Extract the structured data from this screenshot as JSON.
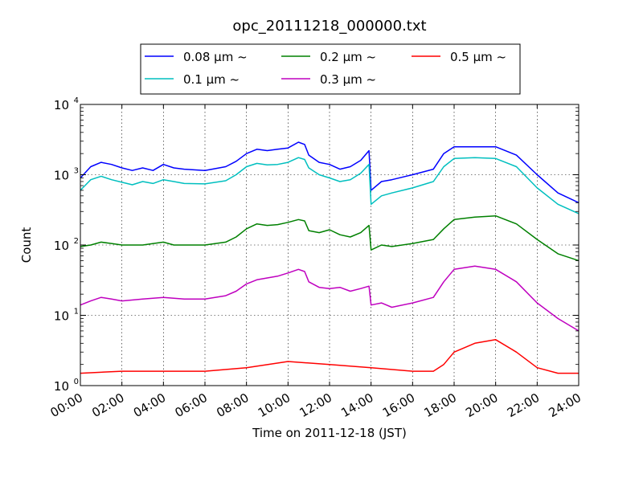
{
  "chart_data": {
    "type": "line",
    "title": "opc_20111218_000000.txt",
    "xlabel": "Time on 2011-12-18 (JST)",
    "ylabel": "Count",
    "x_range_hours": [
      0,
      24
    ],
    "x_ticks": [
      "00:00",
      "02:00",
      "04:00",
      "06:00",
      "08:00",
      "10:00",
      "12:00",
      "14:00",
      "16:00",
      "18:00",
      "20:00",
      "22:00",
      "24:00"
    ],
    "y_scale": "log",
    "ylim": [
      1,
      10000
    ],
    "y_ticks": [
      {
        "base": "10",
        "exp": "0"
      },
      {
        "base": "10",
        "exp": "1"
      },
      {
        "base": "10",
        "exp": "2"
      },
      {
        "base": "10",
        "exp": "3"
      },
      {
        "base": "10",
        "exp": "4"
      }
    ],
    "grid": true,
    "legend_position": "top-center",
    "series": [
      {
        "name": "0.08 μm ~",
        "color": "#0000ff",
        "x": [
          0,
          0.5,
          1,
          1.5,
          2,
          2.5,
          3,
          3.5,
          4,
          4.5,
          5,
          6,
          7,
          7.5,
          8,
          8.5,
          9,
          9.5,
          10,
          10.5,
          10.8,
          11,
          11.5,
          12,
          12.5,
          13,
          13.5,
          13.9,
          14,
          14.5,
          15,
          16,
          17,
          17.5,
          18,
          19,
          20,
          21,
          22,
          23,
          24
        ],
        "y": [
          900,
          1300,
          1500,
          1400,
          1250,
          1150,
          1250,
          1150,
          1400,
          1250,
          1200,
          1150,
          1300,
          1550,
          2000,
          2300,
          2200,
          2300,
          2400,
          2900,
          2700,
          1900,
          1500,
          1400,
          1200,
          1300,
          1600,
          2200,
          600,
          800,
          850,
          1000,
          1200,
          2000,
          2500,
          2500,
          2500,
          1900,
          1000,
          550,
          400
        ]
      },
      {
        "name": "0.1 μm ~",
        "color": "#00bfbf",
        "x": [
          0,
          0.5,
          1,
          1.5,
          2,
          2.5,
          3,
          3.5,
          4,
          4.5,
          5,
          6,
          7,
          7.5,
          8,
          8.5,
          9,
          9.5,
          10,
          10.5,
          10.8,
          11,
          11.5,
          12,
          12.5,
          13,
          13.5,
          13.9,
          14,
          14.5,
          15,
          16,
          17,
          17.5,
          18,
          19,
          20,
          21,
          22,
          23,
          24
        ],
        "y": [
          600,
          850,
          950,
          850,
          780,
          720,
          800,
          750,
          850,
          800,
          750,
          740,
          820,
          1000,
          1300,
          1450,
          1380,
          1400,
          1500,
          1750,
          1650,
          1250,
          1000,
          900,
          800,
          850,
          1050,
          1400,
          380,
          500,
          550,
          650,
          800,
          1300,
          1700,
          1750,
          1700,
          1300,
          650,
          380,
          280
        ]
      },
      {
        "name": "0.2 μm ~",
        "color": "#008000",
        "x": [
          0,
          0.5,
          1,
          1.5,
          2,
          3,
          4,
          4.5,
          5,
          6,
          7,
          7.5,
          8,
          8.5,
          9,
          9.5,
          10,
          10.5,
          10.8,
          11,
          11.5,
          12,
          12.5,
          13,
          13.5,
          13.9,
          14,
          14.5,
          15,
          16,
          17,
          17.5,
          18,
          19,
          20,
          21,
          22,
          23,
          24
        ],
        "y": [
          95,
          100,
          110,
          105,
          100,
          100,
          110,
          100,
          100,
          100,
          110,
          130,
          170,
          200,
          190,
          195,
          210,
          230,
          220,
          160,
          150,
          165,
          140,
          130,
          150,
          190,
          85,
          100,
          95,
          105,
          120,
          170,
          230,
          250,
          260,
          200,
          120,
          75,
          60
        ]
      },
      {
        "name": "0.3 μm ~",
        "color": "#bf00bf",
        "x": [
          0,
          0.5,
          1,
          1.5,
          2,
          3,
          4,
          5,
          6,
          7,
          7.5,
          8,
          8.5,
          9,
          9.5,
          10,
          10.5,
          10.8,
          11,
          11.5,
          12,
          12.5,
          13,
          13.5,
          13.9,
          14,
          14.5,
          15,
          16,
          17,
          17.5,
          18,
          19,
          20,
          21,
          22,
          23,
          24
        ],
        "y": [
          14,
          16,
          18,
          17,
          16,
          17,
          18,
          17,
          17,
          19,
          22,
          28,
          32,
          34,
          36,
          40,
          45,
          42,
          30,
          25,
          24,
          25,
          22,
          24,
          26,
          14,
          15,
          13,
          15,
          18,
          30,
          45,
          50,
          45,
          30,
          15,
          9,
          6
        ]
      },
      {
        "name": "0.5 μm ~",
        "color": "#ff0000",
        "x": [
          0,
          2,
          4,
          6,
          8,
          10,
          12,
          14,
          16,
          17,
          17.5,
          18,
          19,
          20,
          21,
          22,
          23,
          24
        ],
        "y": [
          1.5,
          1.6,
          1.6,
          1.6,
          1.8,
          2.2,
          2.0,
          1.8,
          1.6,
          1.6,
          2.0,
          3.0,
          4.0,
          4.5,
          3.0,
          1.8,
          1.5,
          1.5
        ]
      }
    ]
  }
}
